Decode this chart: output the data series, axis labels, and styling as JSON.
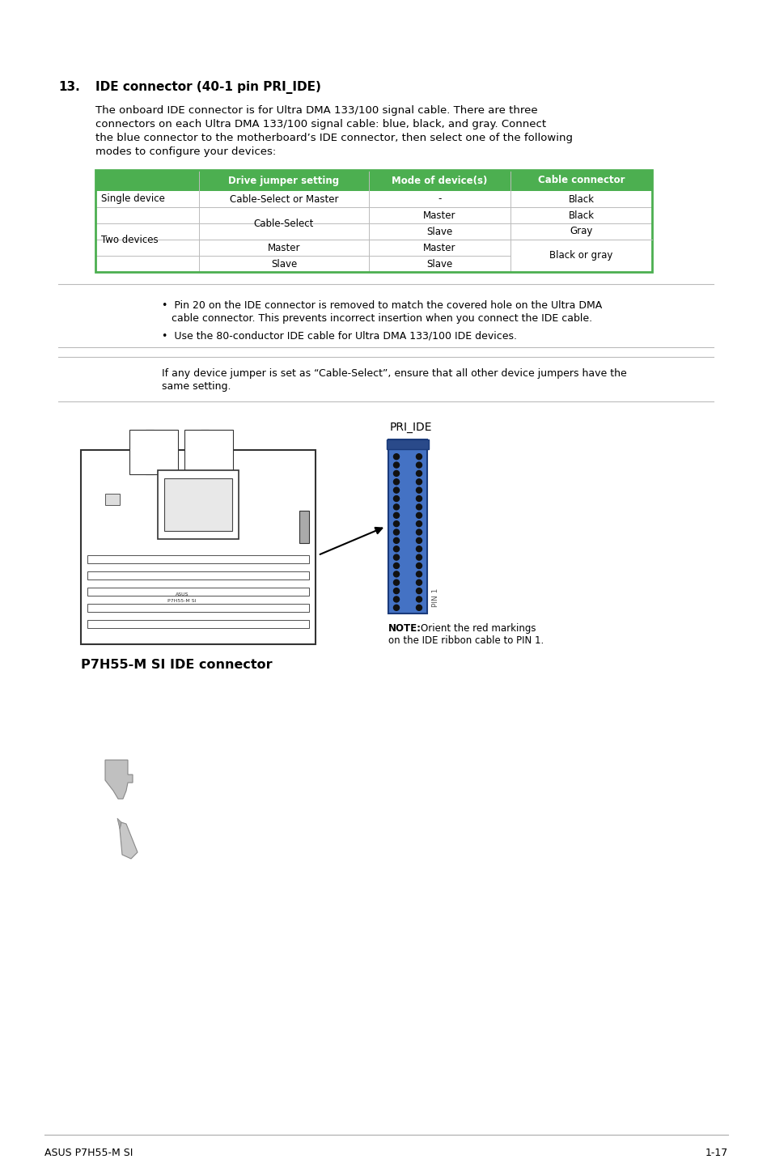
{
  "page_bg": "#ffffff",
  "section_number": "13.",
  "section_title": "IDE connector (40-1 pin PRI_IDE)",
  "body_lines": [
    "The onboard IDE connector is for Ultra DMA 133/100 signal cable. There are three",
    "connectors on each Ultra DMA 133/100 signal cable: blue, black, and gray. Connect",
    "the blue connector to the motherboard’s IDE connector, then select one of the following",
    "modes to configure your devices:"
  ],
  "table_header_bg": "#4CAF50",
  "table_header_text_color": "#ffffff",
  "table_header_cols": [
    "Drive jumper setting",
    "Mode of device(s)",
    "Cable connector"
  ],
  "note_line1": "•  Pin 20 on the IDE connector is removed to match the covered hole on the Ultra DMA",
  "note_line2": "   cable connector. This prevents incorrect insertion when you connect the IDE cable.",
  "note_line3": "•  Use the 80-conductor IDE cable for Ultra DMA 133/100 IDE devices.",
  "caution_line1": "If any device jumper is set as “Cable-Select”, ensure that all other device jumpers have the",
  "caution_line2": "same setting.",
  "diagram_label": "PRI_IDE",
  "diagram_note_bold": "NOTE:",
  "diagram_note1": "Orient the red markings",
  "diagram_note2": "on the IDE ribbon cable to PIN 1.",
  "diagram_caption": "P7H55-M SI IDE connector",
  "footer_left": "ASUS P7H55-M SI",
  "footer_right": "1-17",
  "connector_color": "#4472C4",
  "connector_dark": "#2a4a8a",
  "table_border_color": "#4CAF50",
  "line_color": "#cccccc"
}
